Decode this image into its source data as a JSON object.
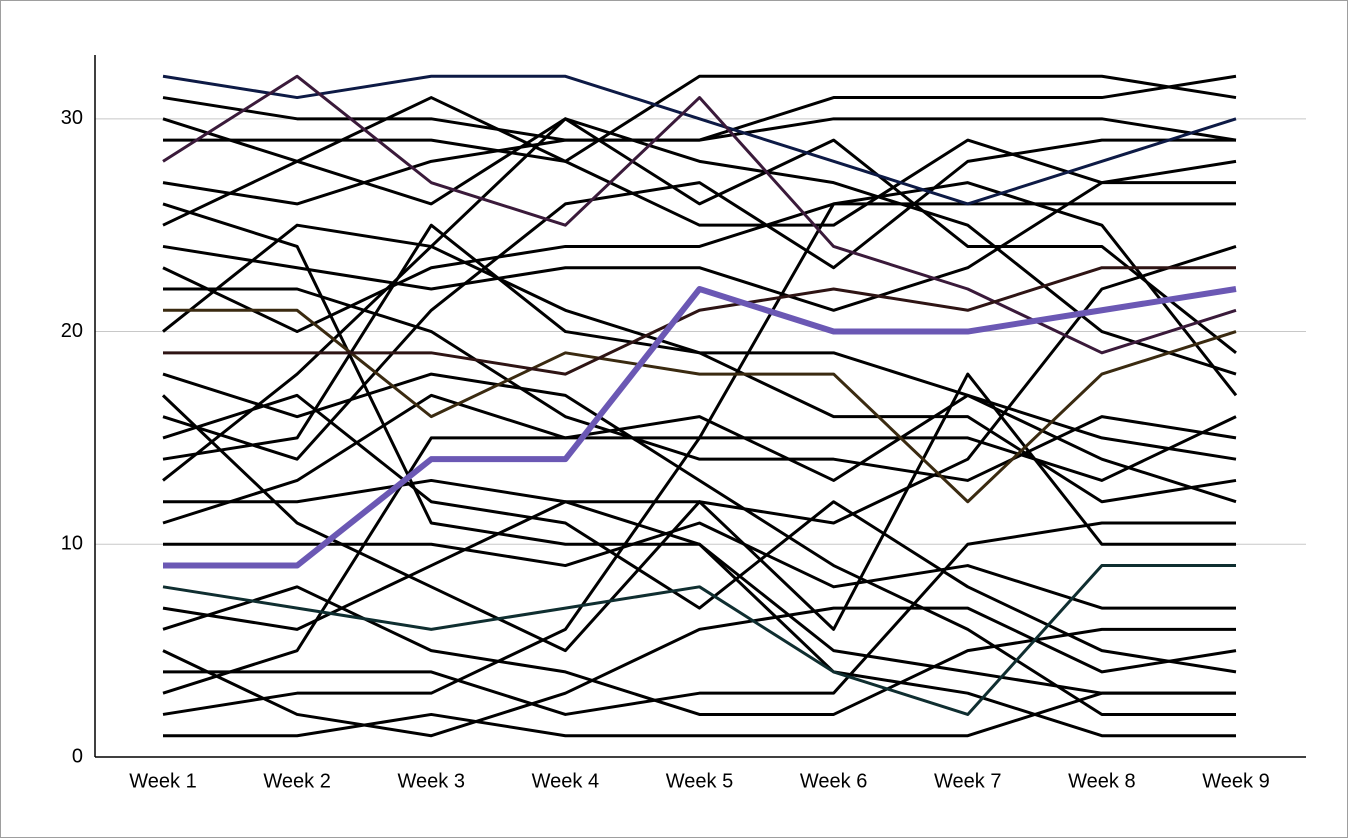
{
  "chart_data": {
    "type": "line",
    "categories": [
      "Week 1",
      "Week 2",
      "Week 3",
      "Week 4",
      "Week 5",
      "Week 6",
      "Week 7",
      "Week 8",
      "Week 9"
    ],
    "ylim": [
      0,
      33
    ],
    "yticks": [
      0,
      10,
      20,
      30
    ],
    "grid": true,
    "series": [
      {
        "color": "#000000",
        "values": [
          31,
          30,
          30,
          29,
          29,
          31,
          31,
          31,
          32
        ]
      },
      {
        "color": "#000000",
        "values": [
          30,
          28,
          26,
          30,
          26,
          29,
          24,
          24,
          19
        ]
      },
      {
        "color": "#000000",
        "values": [
          29,
          29,
          29,
          28,
          32,
          32,
          32,
          32,
          31
        ]
      },
      {
        "color": "#000000",
        "values": [
          27,
          26,
          28,
          29,
          29,
          30,
          30,
          30,
          29
        ]
      },
      {
        "color": "#000000",
        "values": [
          26,
          24,
          11,
          10,
          10,
          4,
          3,
          1,
          1
        ]
      },
      {
        "color": "#000000",
        "values": [
          25,
          28,
          31,
          28,
          25,
          25,
          29,
          27,
          27
        ]
      },
      {
        "color": "#000000",
        "values": [
          24,
          23,
          22,
          23,
          23,
          21,
          23,
          27,
          28
        ]
      },
      {
        "color": "#000000",
        "values": [
          23,
          20,
          23,
          24,
          24,
          26,
          27,
          25,
          17
        ]
      },
      {
        "color": "#000000",
        "values": [
          22,
          22,
          20,
          16,
          14,
          14,
          13,
          16,
          15
        ]
      },
      {
        "color": "#000000",
        "values": [
          20,
          25,
          24,
          21,
          19,
          19,
          17,
          15,
          14
        ]
      },
      {
        "color": "#000000",
        "values": [
          18,
          16,
          18,
          17,
          13,
          9,
          6,
          2,
          2
        ]
      },
      {
        "color": "#000000",
        "values": [
          17,
          11,
          8,
          5,
          12,
          6,
          18,
          10,
          10
        ]
      },
      {
        "color": "#000000",
        "values": [
          16,
          14,
          21,
          26,
          27,
          23,
          28,
          29,
          29
        ]
      },
      {
        "color": "#000000",
        "values": [
          15,
          17,
          12,
          11,
          7,
          12,
          8,
          5,
          4
        ]
      },
      {
        "color": "#000000",
        "values": [
          14,
          15,
          25,
          20,
          19,
          16,
          16,
          12,
          13
        ]
      },
      {
        "color": "#000000",
        "values": [
          13,
          18,
          24,
          30,
          28,
          27,
          25,
          20,
          18
        ]
      },
      {
        "color": "#000000",
        "values": [
          12,
          12,
          13,
          12,
          12,
          11,
          14,
          22,
          24
        ]
      },
      {
        "color": "#000000",
        "values": [
          11,
          13,
          17,
          15,
          16,
          13,
          17,
          14,
          12
        ]
      },
      {
        "color": "#000000",
        "values": [
          10,
          10,
          10,
          9,
          11,
          8,
          9,
          7,
          7
        ]
      },
      {
        "color": "#000000",
        "values": [
          7,
          6,
          9,
          12,
          10,
          5,
          4,
          3,
          3
        ]
      },
      {
        "color": "#000000",
        "values": [
          6,
          8,
          5,
          4,
          2,
          2,
          5,
          6,
          6
        ]
      },
      {
        "color": "#000000",
        "values": [
          5,
          2,
          1,
          3,
          6,
          7,
          7,
          4,
          5
        ]
      },
      {
        "color": "#000000",
        "values": [
          4,
          4,
          4,
          2,
          3,
          3,
          10,
          11,
          11
        ]
      },
      {
        "color": "#000000",
        "values": [
          3,
          5,
          15,
          15,
          15,
          15,
          15,
          13,
          16
        ]
      },
      {
        "color": "#000000",
        "values": [
          2,
          3,
          3,
          6,
          15,
          26,
          26,
          26,
          26
        ]
      },
      {
        "color": "#000000",
        "values": [
          1,
          1,
          2,
          1,
          1,
          1,
          1,
          3,
          3
        ]
      },
      {
        "color": "#0d1a45",
        "values": [
          32,
          31,
          32,
          32,
          30,
          28,
          26,
          28,
          30
        ]
      },
      {
        "color": "#3a1a3a",
        "values": [
          28,
          32,
          27,
          25,
          31,
          24,
          22,
          19,
          21
        ]
      },
      {
        "color": "#3a2a10",
        "values": [
          21,
          21,
          16,
          19,
          18,
          18,
          12,
          18,
          20
        ]
      },
      {
        "color": "#2e1414",
        "values": [
          19,
          19,
          19,
          18,
          21,
          22,
          21,
          23,
          23
        ]
      },
      {
        "color": "#0f2e30",
        "values": [
          8,
          7,
          6,
          7,
          8,
          4,
          2,
          9,
          9
        ]
      },
      {
        "color": "#6b58b4",
        "values": [
          9,
          9,
          14,
          14,
          22,
          20,
          20,
          21,
          22
        ],
        "width": 6
      }
    ]
  }
}
